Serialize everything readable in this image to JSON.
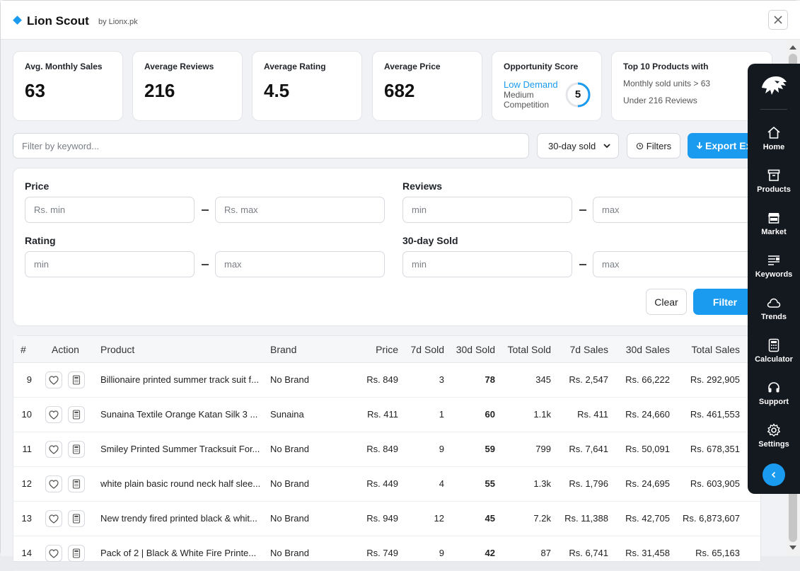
{
  "app": {
    "title": "Lion Scout",
    "subtitle": "by Lionx.pk"
  },
  "stats": {
    "avg_monthly_sales": {
      "label": "Avg. Monthly Sales",
      "value": "63"
    },
    "average_reviews": {
      "label": "Average Reviews",
      "value": "216"
    },
    "average_rating": {
      "label": "Average Rating",
      "value": "4.5"
    },
    "average_price": {
      "label": "Average Price",
      "value": "682"
    },
    "opportunity": {
      "label": "Opportunity Score",
      "demand": "Low Demand",
      "competition": "Medium Competition",
      "score": "5",
      "score_fraction": 0.5
    },
    "top10": {
      "label": "Top 10 Products with",
      "line1": "Monthly sold units > 63",
      "line2": "Under 216 Reviews"
    }
  },
  "toolbar": {
    "search_placeholder": "Filter by keyword...",
    "sort_value": "30-day sold",
    "filters_label": "Filters",
    "export_label": "Export Ex"
  },
  "filters": {
    "price": {
      "label": "Price",
      "min_placeholder": "Rs. min",
      "max_placeholder": "Rs. max"
    },
    "reviews": {
      "label": "Reviews",
      "min_placeholder": "min",
      "max_placeholder": "max"
    },
    "rating": {
      "label": "Rating",
      "min_placeholder": "min",
      "max_placeholder": "max"
    },
    "sold30": {
      "label": "30-day Sold",
      "min_placeholder": "min",
      "max_placeholder": "max"
    },
    "clear_label": "Clear",
    "filter_label": "Filter"
  },
  "table": {
    "headers": {
      "num": "#",
      "action": "Action",
      "product": "Product",
      "brand": "Brand",
      "price": "Price",
      "sold7": "7d Sold",
      "sold30": "30d Sold",
      "total_sold": "Total Sold",
      "sales7": "7d Sales",
      "sales30": "30d Sales",
      "total_sales": "Total Sales"
    },
    "rows": [
      {
        "num": "9",
        "product": "Billionaire printed summer track suit f...",
        "brand": "No Brand",
        "price": "Rs. 849",
        "sold7": "3",
        "sold30": "78",
        "total_sold": "345",
        "sales7": "Rs. 2,547",
        "sales30": "Rs. 66,222",
        "total_sales": "Rs. 292,905"
      },
      {
        "num": "10",
        "product": "Sunaina Textile Orange Katan Silk 3 ...",
        "brand": "Sunaina",
        "price": "Rs. 411",
        "sold7": "1",
        "sold30": "60",
        "total_sold": "1.1k",
        "sales7": "Rs. 411",
        "sales30": "Rs. 24,660",
        "total_sales": "Rs. 461,553"
      },
      {
        "num": "11",
        "product": "Smiley Printed Summer Tracksuit For...",
        "brand": "No Brand",
        "price": "Rs. 849",
        "sold7": "9",
        "sold30": "59",
        "total_sold": "799",
        "sales7": "Rs. 7,641",
        "sales30": "Rs. 50,091",
        "total_sales": "Rs. 678,351"
      },
      {
        "num": "12",
        "product": "white plain basic round neck half slee...",
        "brand": "No Brand",
        "price": "Rs. 449",
        "sold7": "4",
        "sold30": "55",
        "total_sold": "1.3k",
        "sales7": "Rs. 1,796",
        "sales30": "Rs. 24,695",
        "total_sales": "Rs. 603,905"
      },
      {
        "num": "13",
        "product": "New trendy fired printed black & whit...",
        "brand": "No Brand",
        "price": "Rs. 949",
        "sold7": "12",
        "sold30": "45",
        "total_sold": "7.2k",
        "sales7": "Rs. 11,388",
        "sales30": "Rs. 42,705",
        "total_sales": "Rs. 6,873,607"
      },
      {
        "num": "14",
        "product": "Pack of 2 | Black & White Fire Printe...",
        "brand": "No Brand",
        "price": "Rs. 749",
        "sold7": "9",
        "sold30": "42",
        "total_sold": "87",
        "sales7": "Rs. 6,741",
        "sales30": "Rs. 31,458",
        "total_sales": "Rs. 65,163"
      }
    ]
  },
  "nav": {
    "items": [
      {
        "label": "Home",
        "icon": "home-icon"
      },
      {
        "label": "Products",
        "icon": "archive-icon"
      },
      {
        "label": "Market",
        "icon": "store-icon"
      },
      {
        "label": "Keywords",
        "icon": "keywords-icon"
      },
      {
        "label": "Trends",
        "icon": "cloud-icon"
      },
      {
        "label": "Calculator",
        "icon": "calculator-icon"
      },
      {
        "label": "Support",
        "icon": "headset-icon"
      },
      {
        "label": "Settings",
        "icon": "gear-icon"
      }
    ]
  },
  "colors": {
    "accent": "#1a9bf0",
    "nav_bg": "#141920"
  }
}
